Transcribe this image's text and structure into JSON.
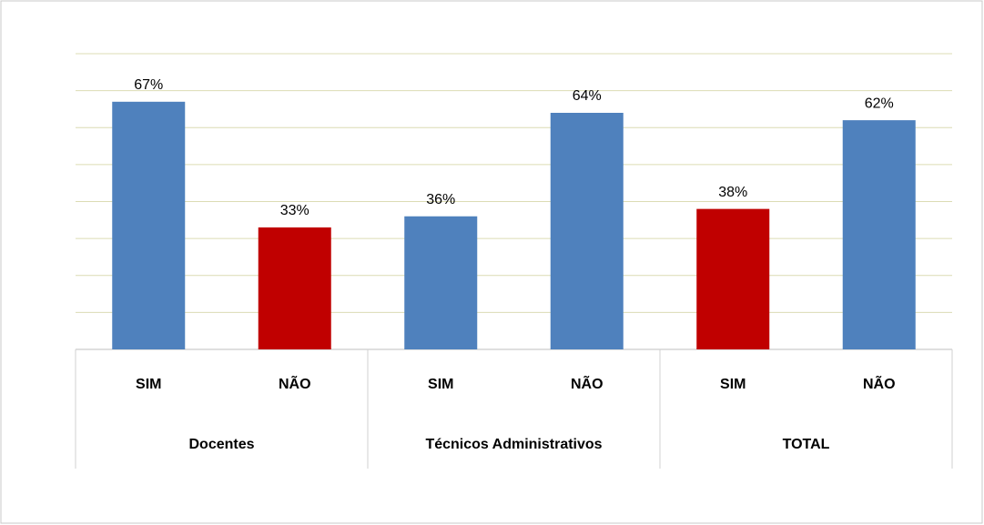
{
  "chart_data": {
    "type": "bar",
    "categories": [
      "SIM",
      "NÃO",
      "SIM",
      "NÃO",
      "SIM",
      "NÃO"
    ],
    "groups": [
      {
        "name": "Docentes",
        "size": 2
      },
      {
        "name": "Técnicos Administrativos",
        "size": 2
      },
      {
        "name": "TOTAL",
        "size": 2
      }
    ],
    "values": [
      67,
      33,
      36,
      64,
      38,
      62
    ],
    "value_labels": [
      "67%",
      "33%",
      "36%",
      "64%",
      "38%",
      "62%"
    ],
    "colors": [
      "#4f81bd",
      "#c00000",
      "#4f81bd",
      "#4f81bd",
      "#c00000",
      "#4f81bd"
    ],
    "ylim": [
      0,
      80
    ],
    "yticks": [
      0,
      10,
      20,
      30,
      40,
      50,
      60,
      70,
      80
    ],
    "grid": true
  }
}
